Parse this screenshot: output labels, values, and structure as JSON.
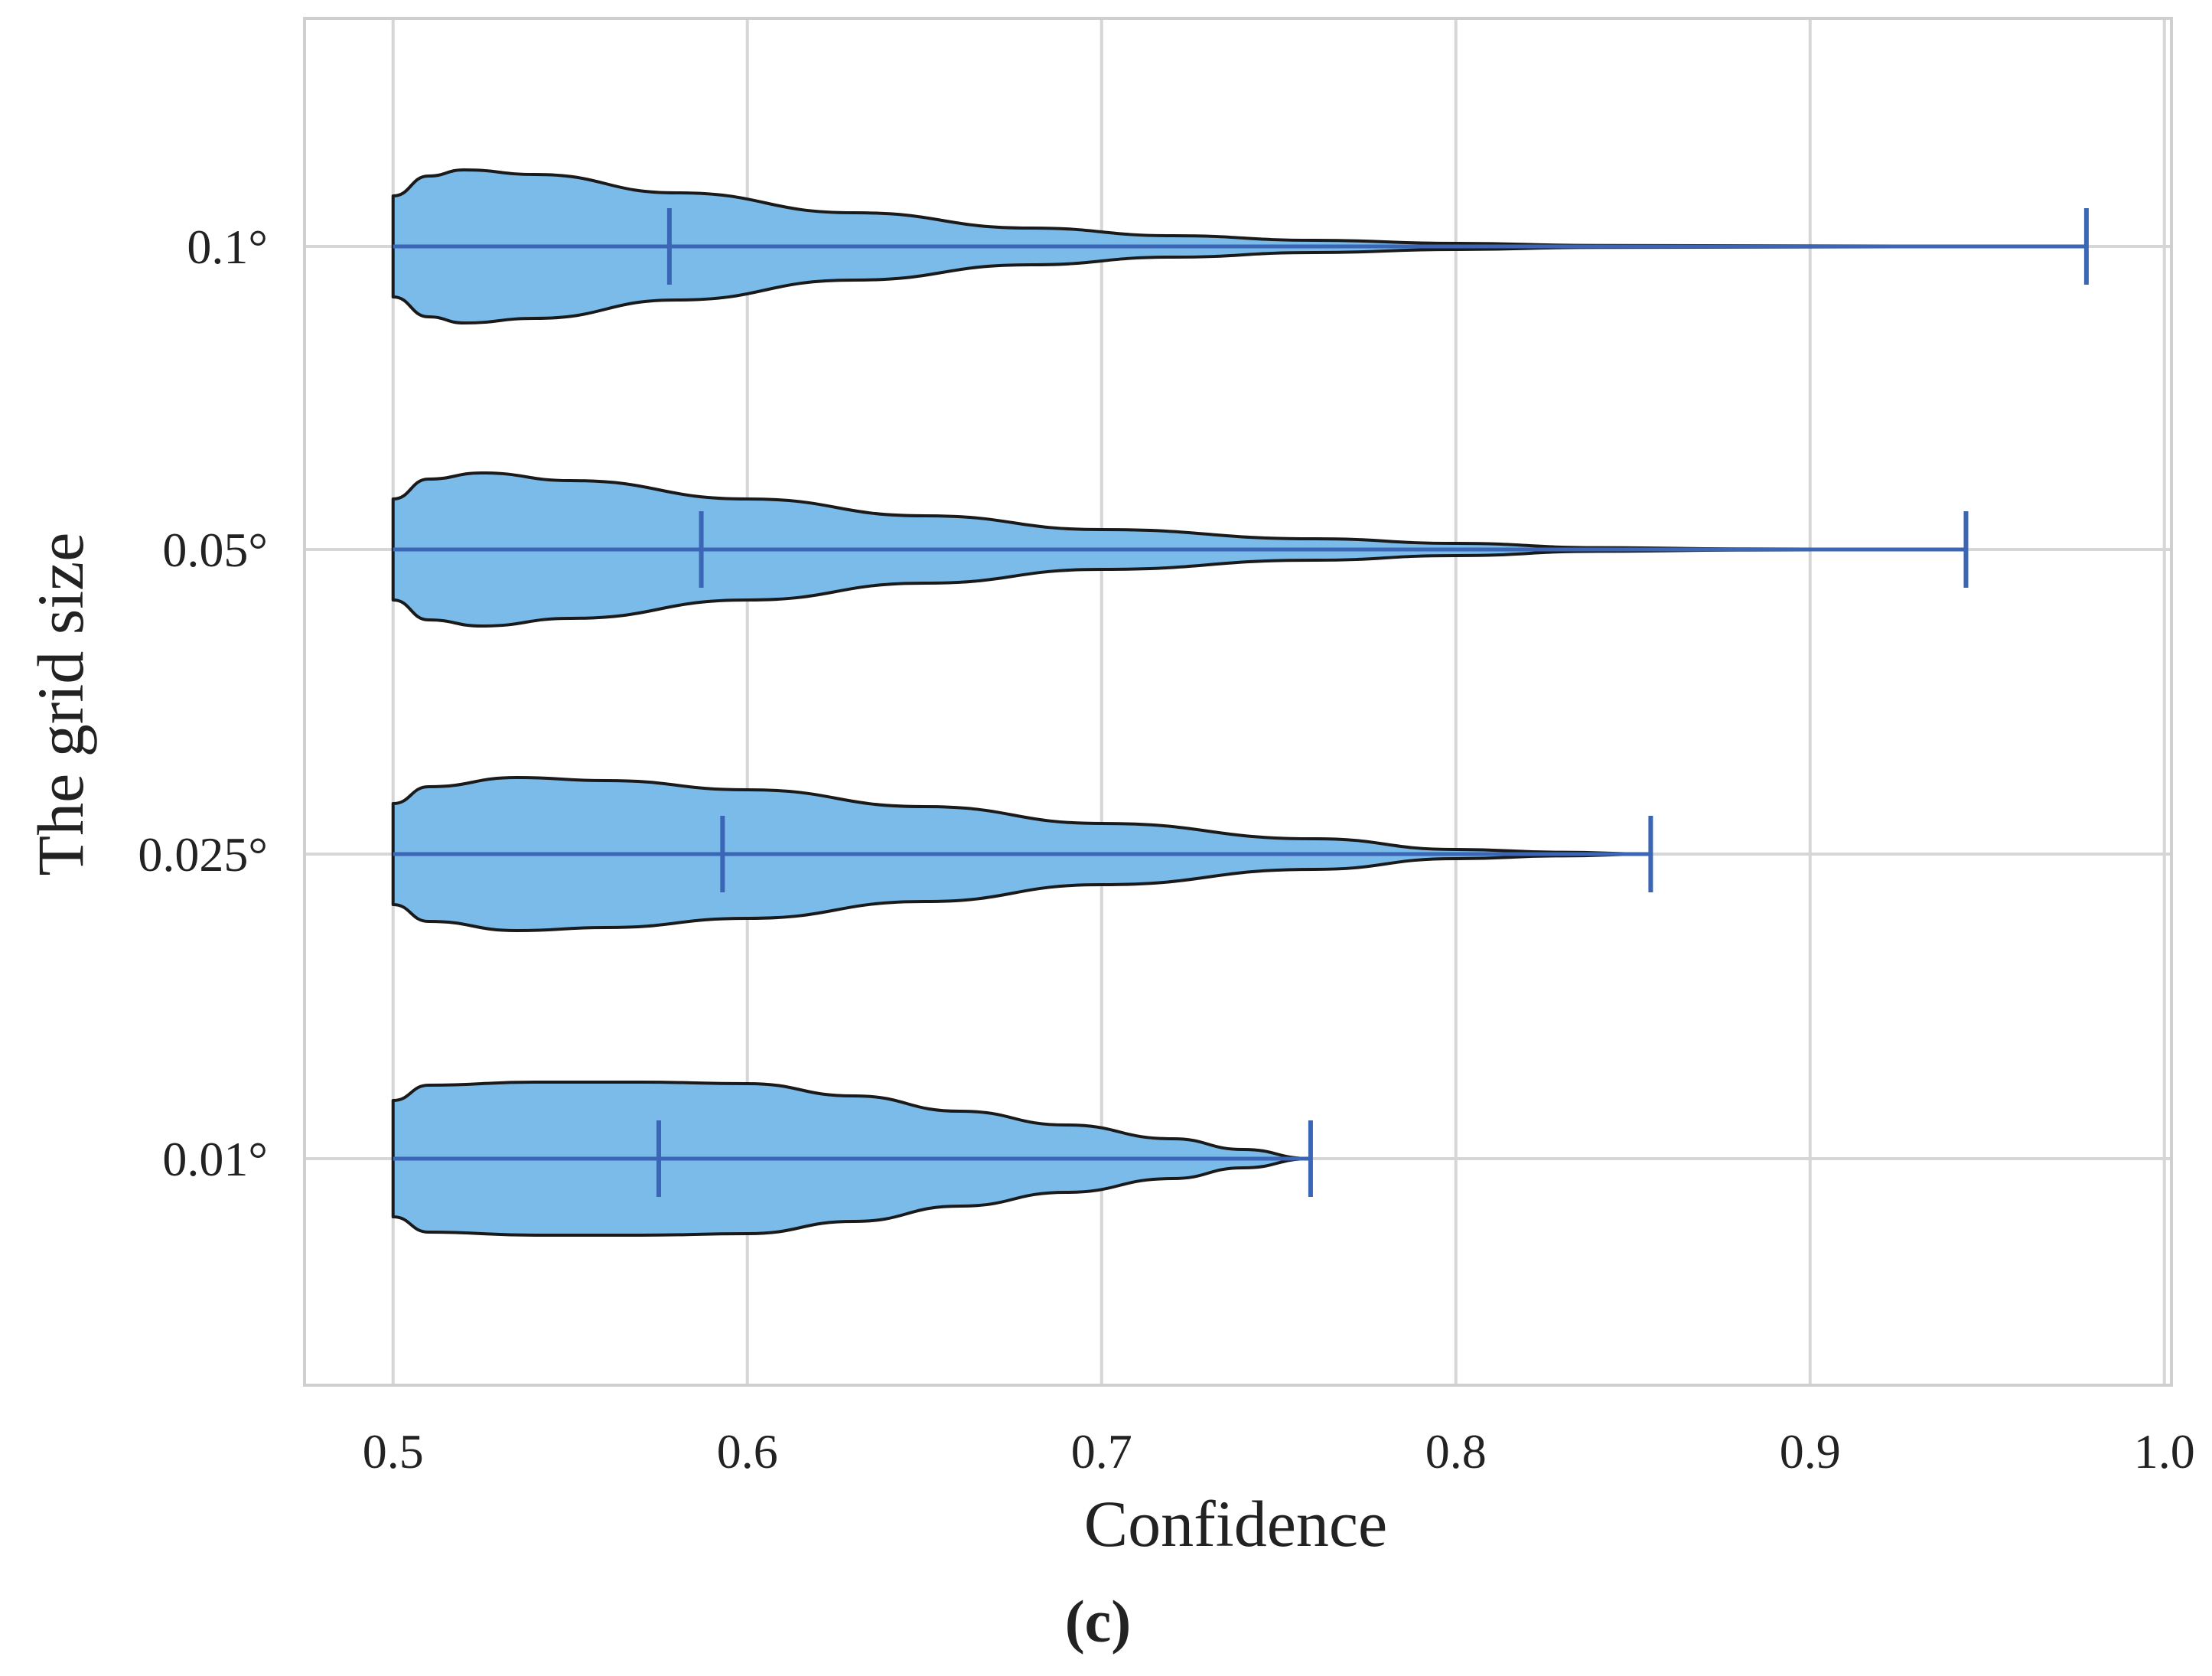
{
  "chart_data": {
    "type": "violin",
    "orientation": "horizontal",
    "xlabel": "Confidence",
    "ylabel": "The grid size",
    "caption": "(c)",
    "xlim": [
      0.475,
      1.002
    ],
    "x_ticks": [
      "0.5",
      "0.6",
      "0.7",
      "0.8",
      "0.9",
      "1.0"
    ],
    "x_tick_values": [
      0.5,
      0.6,
      0.7,
      0.8,
      0.9,
      1.0
    ],
    "categories": [
      "0.1°",
      "0.05°",
      "0.025°",
      "0.01°"
    ],
    "grid": true,
    "fill_color": "#7bbbea",
    "edge_color": "#1a1a1a",
    "line_color": "#3a66b5",
    "series": [
      {
        "name": "0.1°",
        "min": 0.5,
        "median": 0.578,
        "max": 0.978,
        "density": [
          [
            0.5,
            0.33
          ],
          [
            0.51,
            0.46
          ],
          [
            0.52,
            0.5
          ],
          [
            0.54,
            0.47
          ],
          [
            0.58,
            0.35
          ],
          [
            0.63,
            0.22
          ],
          [
            0.68,
            0.12
          ],
          [
            0.72,
            0.07
          ],
          [
            0.76,
            0.04
          ],
          [
            0.8,
            0.02
          ],
          [
            0.84,
            0.006
          ],
          [
            0.978,
            0.0
          ]
        ]
      },
      {
        "name": "0.05°",
        "min": 0.5,
        "median": 0.587,
        "max": 0.944,
        "density": [
          [
            0.5,
            0.33
          ],
          [
            0.51,
            0.46
          ],
          [
            0.525,
            0.5
          ],
          [
            0.55,
            0.45
          ],
          [
            0.6,
            0.33
          ],
          [
            0.65,
            0.22
          ],
          [
            0.7,
            0.13
          ],
          [
            0.76,
            0.07
          ],
          [
            0.8,
            0.04
          ],
          [
            0.84,
            0.012
          ],
          [
            0.88,
            0.004
          ],
          [
            0.944,
            0.0
          ]
        ]
      },
      {
        "name": "0.025°",
        "min": 0.5,
        "median": 0.593,
        "max": 0.855,
        "density": [
          [
            0.5,
            0.33
          ],
          [
            0.51,
            0.44
          ],
          [
            0.535,
            0.5
          ],
          [
            0.56,
            0.48
          ],
          [
            0.6,
            0.42
          ],
          [
            0.65,
            0.31
          ],
          [
            0.7,
            0.2
          ],
          [
            0.76,
            0.1
          ],
          [
            0.8,
            0.03
          ],
          [
            0.83,
            0.012
          ],
          [
            0.855,
            0.0
          ]
        ]
      },
      {
        "name": "0.01°",
        "min": 0.5,
        "median": 0.575,
        "max": 0.759,
        "density": [
          [
            0.5,
            0.38
          ],
          [
            0.51,
            0.48
          ],
          [
            0.54,
            0.5
          ],
          [
            0.57,
            0.5
          ],
          [
            0.6,
            0.49
          ],
          [
            0.63,
            0.41
          ],
          [
            0.66,
            0.31
          ],
          [
            0.69,
            0.22
          ],
          [
            0.72,
            0.13
          ],
          [
            0.74,
            0.06
          ],
          [
            0.759,
            0.0
          ]
        ]
      }
    ]
  }
}
